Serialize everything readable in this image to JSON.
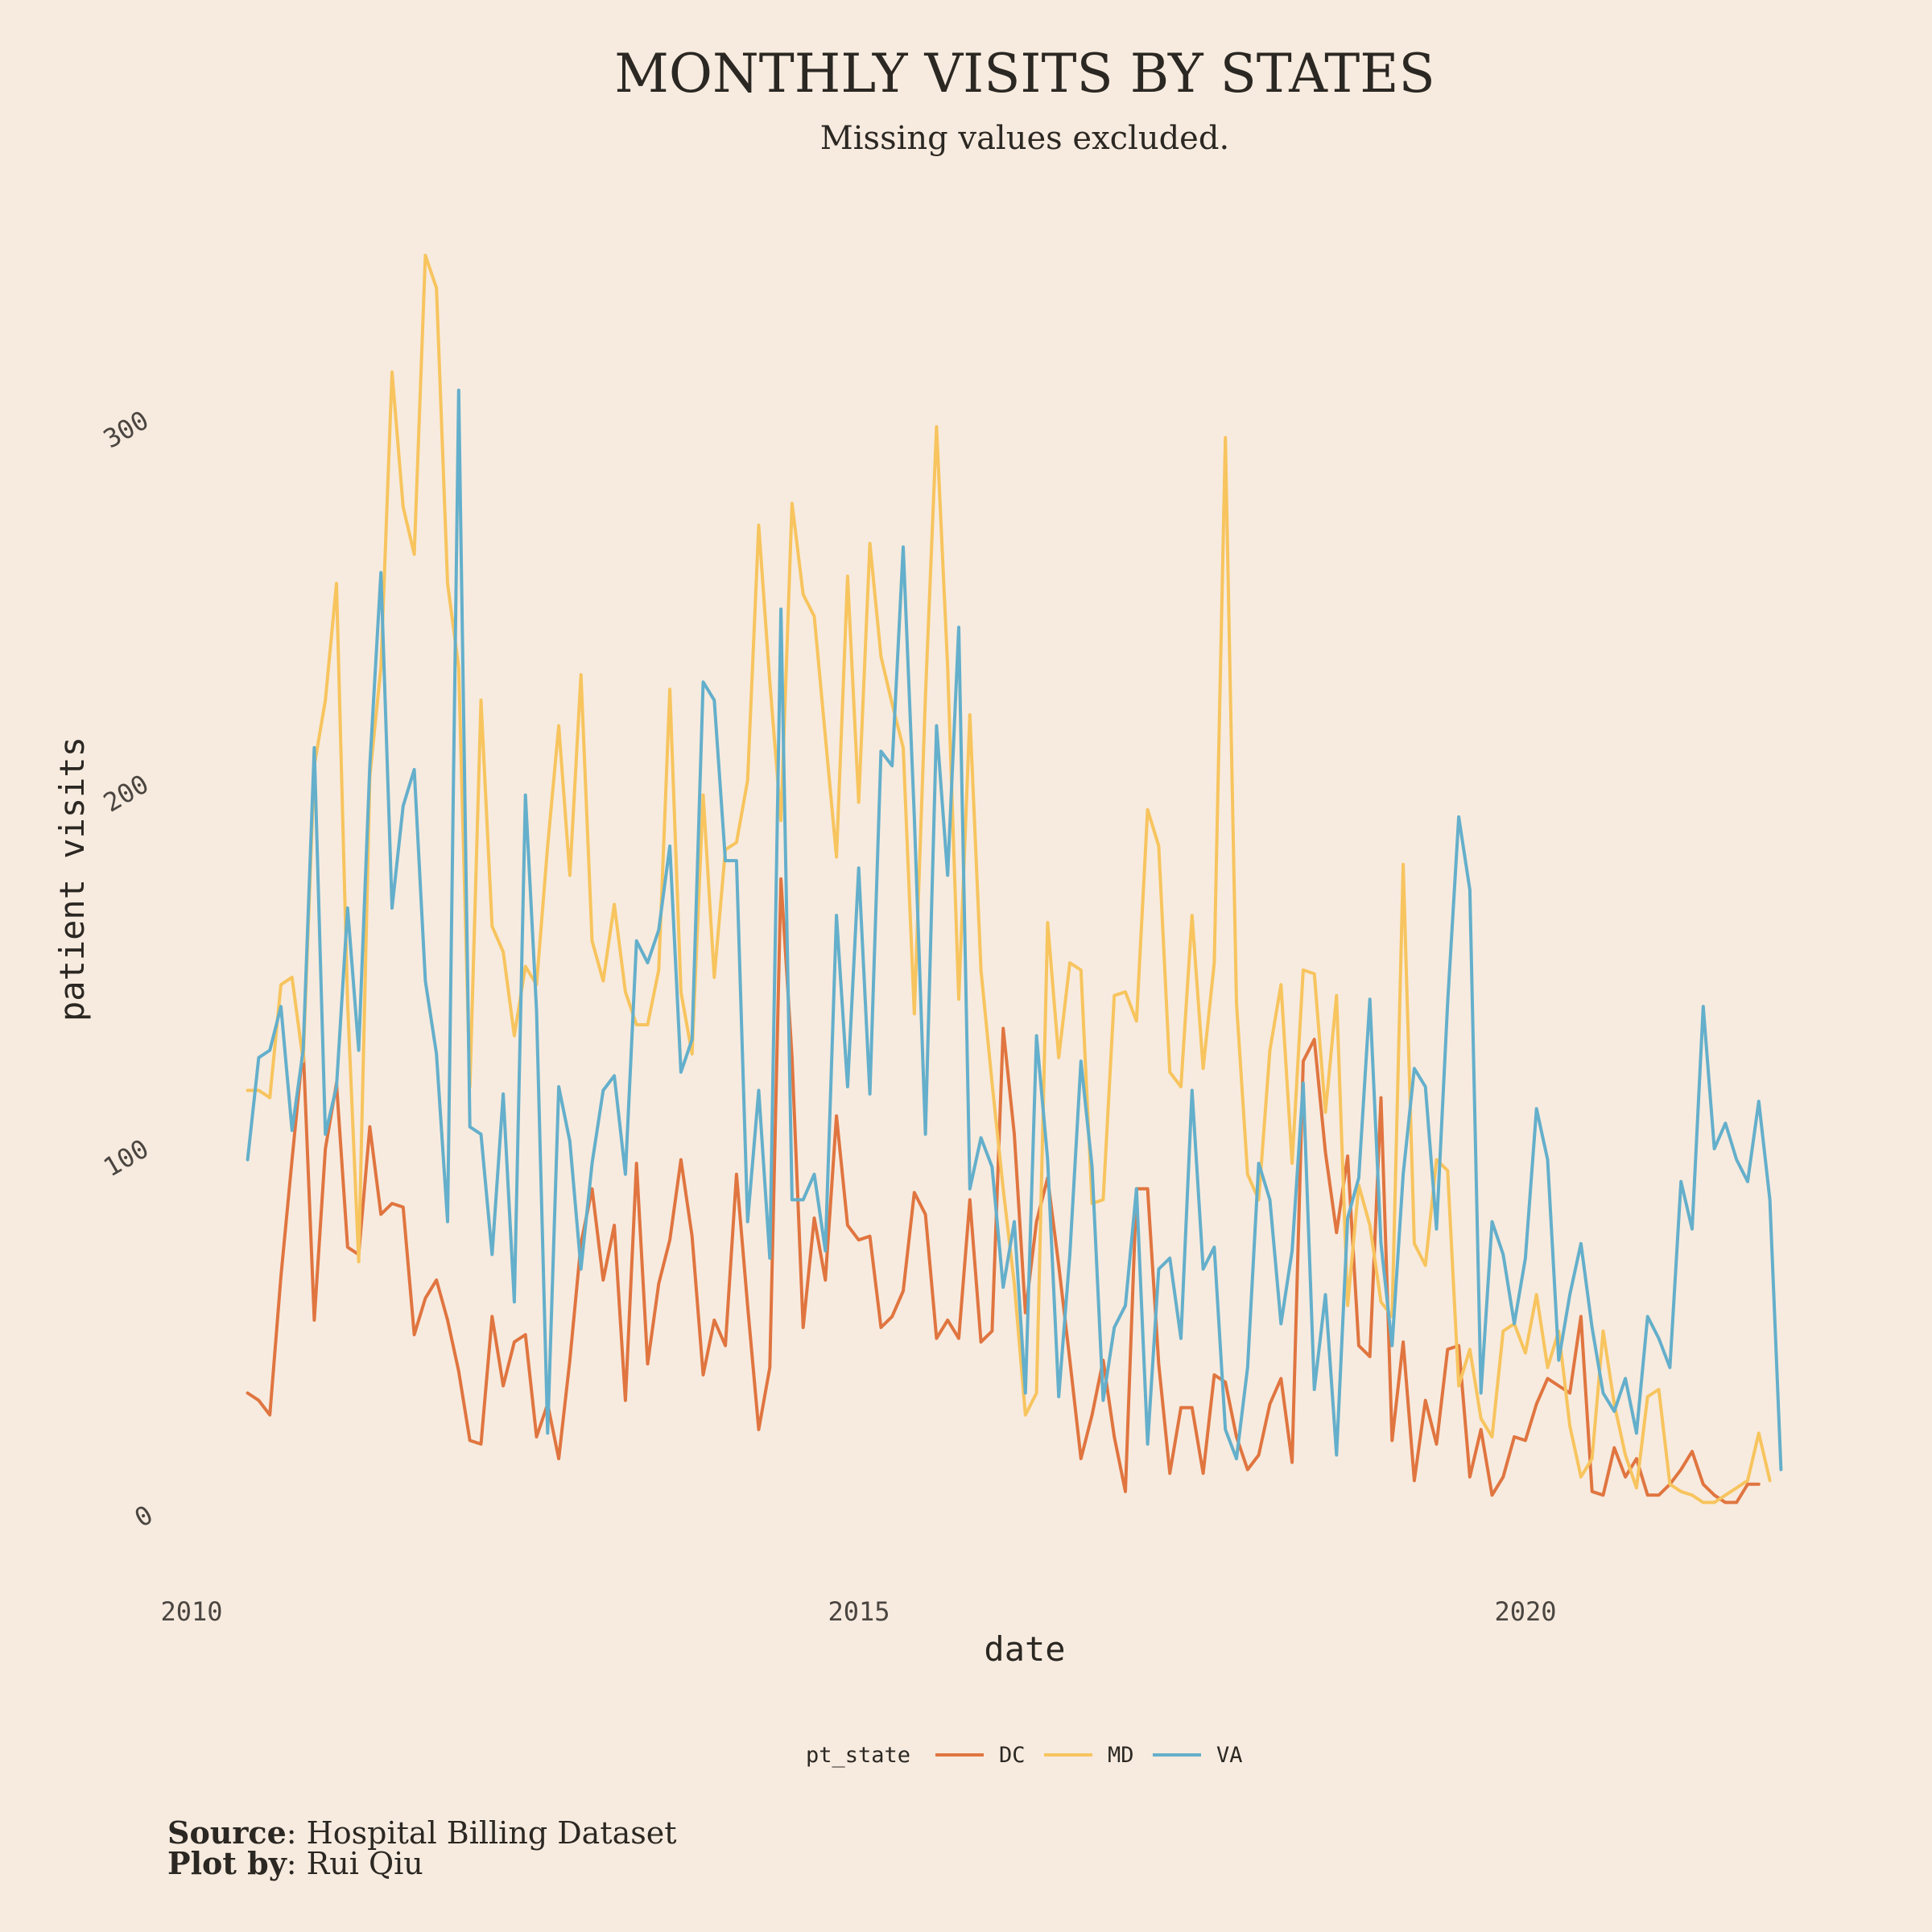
{
  "chart_data": {
    "type": "line",
    "title": "MONTHLY VISITS BY STATES",
    "subtitle": "Missing values excluded.",
    "xlabel": "date",
    "ylabel": "patient visits",
    "x_ticks": [
      "2010",
      "2015",
      "2020"
    ],
    "y_ticks": [
      "0",
      "100",
      "200",
      "300"
    ],
    "xlim": [
      2010.0,
      2022.3
    ],
    "ylim": [
      0,
      345
    ],
    "grid": false,
    "legend": {
      "title": "pt_state",
      "position": "bottom",
      "entries": [
        "DC",
        "MD",
        "VA"
      ]
    },
    "series": [
      {
        "name": "DC",
        "color": "#e07540",
        "x_start": 2010.42,
        "x_step": 0.0833,
        "values": [
          33,
          31,
          27,
          65,
          97,
          128,
          53,
          100,
          118,
          73,
          71,
          106,
          82,
          85,
          84,
          49,
          59,
          64,
          53,
          39,
          20,
          19,
          54,
          35,
          47,
          49,
          21,
          30,
          15,
          42,
          74,
          89,
          64,
          79,
          31,
          96,
          41,
          63,
          75,
          97,
          76,
          38,
          53,
          46,
          93,
          57,
          23,
          40,
          174,
          125,
          51,
          81,
          64,
          109,
          79,
          75,
          76,
          51,
          54,
          61,
          88,
          82,
          48,
          53,
          48,
          86,
          47,
          50,
          133,
          104,
          55,
          80,
          92,
          68,
          42,
          15,
          27,
          42,
          21,
          6,
          89,
          89,
          41,
          11,
          29,
          29,
          11,
          38,
          36,
          21,
          12,
          16,
          30,
          37,
          14,
          124,
          130,
          99,
          77,
          98,
          46,
          43,
          114,
          20,
          47,
          9,
          31,
          19,
          45,
          46,
          10,
          23,
          5,
          10,
          21,
          20,
          30,
          37,
          35,
          33,
          54,
          6,
          5,
          18,
          10,
          15,
          5,
          5,
          8,
          12,
          17,
          8,
          5,
          3,
          3,
          8,
          8
        ]
      },
      {
        "name": "MD",
        "color": "#f7c45e",
        "x_start": 2010.42,
        "x_step": 0.0833,
        "values": [
          116,
          116,
          114,
          145,
          147,
          124,
          205,
          223,
          255,
          140,
          69,
          202,
          232,
          313,
          276,
          263,
          345,
          336,
          255,
          232,
          117,
          223,
          161,
          154,
          131,
          150,
          145,
          183,
          216,
          175,
          230,
          157,
          146,
          167,
          143,
          134,
          134,
          149,
          226,
          143,
          126,
          197,
          147,
          182,
          184,
          201,
          271,
          228,
          190,
          277,
          252,
          246,
          213,
          180,
          257,
          195,
          266,
          235,
          222,
          210,
          137,
          224,
          298,
          232,
          141,
          219,
          149,
          118,
          89,
          63,
          27,
          33,
          162,
          125,
          151,
          149,
          85,
          86,
          142,
          143,
          135,
          193,
          183,
          121,
          117,
          164,
          122,
          151,
          295,
          140,
          93,
          86,
          127,
          145,
          96,
          149,
          148,
          110,
          142,
          57,
          90,
          79,
          58,
          54,
          178,
          74,
          68,
          97,
          94,
          35,
          45,
          26,
          21,
          50,
          52,
          44,
          60,
          40,
          50,
          24,
          10,
          15,
          50,
          30,
          16,
          7,
          32,
          34,
          8,
          6,
          5,
          3,
          3,
          5,
          7,
          9,
          22,
          9
        ]
      },
      {
        "name": "VA",
        "color": "#64afcb",
        "x_start": 2010.42,
        "x_step": 0.0833,
        "values": [
          97,
          125,
          127,
          139,
          105,
          127,
          210,
          104,
          117,
          166,
          127,
          205,
          258,
          166,
          194,
          204,
          146,
          126,
          80,
          308,
          106,
          104,
          71,
          115,
          58,
          197,
          138,
          22,
          117,
          102,
          67,
          96,
          116,
          120,
          93,
          157,
          151,
          160,
          183,
          121,
          130,
          228,
          223,
          179,
          179,
          80,
          116,
          70,
          248,
          86,
          86,
          93,
          72,
          164,
          117,
          177,
          115,
          209,
          205,
          265,
          191,
          104,
          216,
          175,
          243,
          89,
          103,
          95,
          62,
          80,
          33,
          131,
          97,
          32,
          71,
          124,
          95,
          31,
          51,
          57,
          89,
          19,
          67,
          70,
          48,
          116,
          67,
          73,
          23,
          15,
          40,
          96,
          86,
          52,
          72,
          118,
          34,
          60,
          16,
          81,
          92,
          141,
          74,
          46,
          93,
          122,
          117,
          78,
          140,
          191,
          171,
          33,
          80,
          71,
          52,
          70,
          111,
          97,
          42,
          60,
          74,
          51,
          33,
          28,
          37,
          22,
          54,
          48,
          40,
          91,
          78,
          139,
          100,
          107,
          97,
          91,
          113,
          86,
          12
        ]
      }
    ]
  },
  "caption": {
    "source_label": "Source",
    "source_text": ": Hospital Billing Dataset",
    "plotby_label": "Plot by",
    "plotby_text": ": Rui Qiu"
  }
}
